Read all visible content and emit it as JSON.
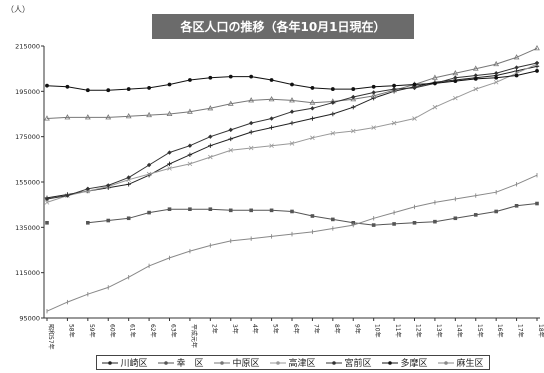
{
  "chart_data": {
    "type": "line",
    "title": "各区人口の推移（各年10月1日現在）",
    "ylabel": "（人）",
    "xlabel": "",
    "ylim": [
      95000,
      215000
    ],
    "yticks": [
      "95000",
      "115000",
      "135000",
      "155000",
      "175000",
      "195000",
      "215000"
    ],
    "ytick_values": [
      95000,
      115000,
      135000,
      155000,
      175000,
      195000,
      215000
    ],
    "categories": [
      "昭和57年",
      "58年",
      "59年",
      "60年",
      "61年",
      "62年",
      "63年",
      "平成元年",
      "2年",
      "3年",
      "4年",
      "5年",
      "6年",
      "7年",
      "8年",
      "9年",
      "10年",
      "11年",
      "12年",
      "13年",
      "14年",
      "15年",
      "16年",
      "17年",
      "18年"
    ],
    "grid": false,
    "legend_position": "bottom",
    "series": [
      {
        "name": "川崎区",
        "color": "#222222",
        "marker": "plus",
        "values": [
          148000,
          149500,
          151000,
          152500,
          154000,
          158000,
          163000,
          167000,
          171000,
          174000,
          177000,
          179000,
          181000,
          183000,
          185000,
          188000,
          192000,
          195000,
          197000,
          199000,
          200000,
          201000,
          202000,
          204000,
          206000
        ]
      },
      {
        "name": "幸　区",
        "color": "#555555",
        "marker": "square",
        "values": [
          137000,
          null,
          137000,
          138000,
          139000,
          141500,
          143000,
          143000,
          143000,
          142500,
          142500,
          142500,
          142000,
          140000,
          138500,
          137000,
          136000,
          136500,
          137000,
          137500,
          139000,
          140500,
          142000,
          144500,
          145500
        ]
      },
      {
        "name": "中原区",
        "color": "#777777",
        "marker": "triangle",
        "values": [
          183000,
          183500,
          183500,
          183500,
          184000,
          184500,
          185000,
          186000,
          187500,
          189500,
          191000,
          191500,
          191000,
          190000,
          190500,
          191500,
          193000,
          195500,
          198000,
          201000,
          203000,
          205000,
          207000,
          210000,
          214000
        ]
      },
      {
        "name": "高津区",
        "color": "#999999",
        "marker": "cross",
        "values": [
          146000,
          149000,
          151000,
          153000,
          156000,
          158500,
          161000,
          163000,
          166000,
          169000,
          170000,
          171000,
          172000,
          174500,
          176500,
          177500,
          179000,
          181000,
          183000,
          188000,
          192000,
          196000,
          199000,
          203000,
          207000
        ]
      },
      {
        "name": "宮前区",
        "color": "#333333",
        "marker": "diamond",
        "values": [
          147500,
          149000,
          152000,
          153500,
          157000,
          162500,
          168000,
          171000,
          175000,
          178000,
          181000,
          183000,
          186000,
          187500,
          190000,
          192500,
          194500,
          196000,
          196500,
          198500,
          201000,
          202000,
          203000,
          205500,
          207500
        ]
      },
      {
        "name": "多摩区",
        "color": "#111111",
        "marker": "circle",
        "values": [
          197500,
          197000,
          195500,
          195500,
          196000,
          196500,
          198000,
          200000,
          201000,
          201500,
          201500,
          200000,
          198000,
          196500,
          196000,
          196000,
          197000,
          197500,
          198000,
          198500,
          199500,
          200500,
          201000,
          202000,
          204000
        ]
      },
      {
        "name": "麻生区",
        "color": "#888888",
        "marker": "bar",
        "values": [
          98000,
          102000,
          105500,
          108500,
          113000,
          118000,
          121500,
          124500,
          127000,
          129000,
          130000,
          131000,
          132000,
          133000,
          134500,
          136000,
          139000,
          141500,
          144000,
          146000,
          147500,
          149000,
          150500,
          154000,
          158000
        ]
      }
    ]
  }
}
